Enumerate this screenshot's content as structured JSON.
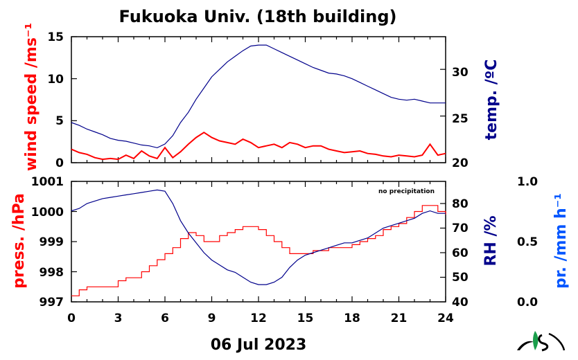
{
  "chart_data": [
    {
      "type": "line",
      "title": "Fukuoka Univ. (18th building)",
      "xlabel": "",
      "x_range": [
        0,
        24
      ],
      "x_ticks": [
        "0",
        "3",
        "6",
        "9",
        "12",
        "15",
        "18",
        "21",
        "24"
      ],
      "left_axis": {
        "label": "wind speed /ms⁻¹",
        "color": "#ff0000",
        "range": [
          0,
          15
        ],
        "ticks": [
          "0",
          "5",
          "10",
          "15"
        ]
      },
      "right_axis": {
        "label": "temp. /ºC",
        "color": "#00008b",
        "range": [
          20,
          33.5
        ],
        "ticks": [
          "20",
          "25",
          "30"
        ]
      },
      "series": [
        {
          "axis": "left",
          "color": "#ff0000",
          "x": [
            0,
            0.5,
            1,
            1.5,
            2,
            2.5,
            3,
            3.5,
            4,
            4.5,
            5,
            5.5,
            6,
            6.5,
            7,
            7.5,
            8,
            8.5,
            9,
            9.5,
            10,
            10.5,
            11,
            11.5,
            12,
            12.5,
            13,
            13.5,
            14,
            14.5,
            15,
            15.5,
            16,
            16.5,
            17,
            17.5,
            18,
            18.5,
            19,
            19.5,
            20,
            20.5,
            21,
            21.5,
            22,
            22.5,
            23,
            23.5,
            24
          ],
          "values": [
            1.6,
            1.2,
            1.0,
            0.6,
            0.4,
            0.5,
            0.4,
            0.9,
            0.5,
            1.4,
            0.8,
            0.5,
            1.8,
            0.6,
            1.3,
            2.2,
            3.0,
            3.6,
            3.0,
            2.6,
            2.4,
            2.2,
            2.8,
            2.4,
            1.8,
            2.0,
            2.2,
            1.8,
            2.4,
            2.2,
            1.8,
            2.0,
            2.0,
            1.6,
            1.4,
            1.2,
            1.3,
            1.4,
            1.1,
            1.0,
            0.8,
            0.7,
            0.9,
            0.8,
            0.7,
            0.9,
            2.2,
            0.9,
            1.1
          ]
        },
        {
          "axis": "right",
          "color": "#00008b",
          "x": [
            0,
            0.5,
            1,
            1.5,
            2,
            2.5,
            3,
            3.5,
            4,
            4.5,
            5,
            5.5,
            6,
            6.5,
            7,
            7.5,
            8,
            8.5,
            9,
            9.5,
            10,
            10.5,
            11,
            11.5,
            12,
            12.5,
            13,
            13.5,
            14,
            14.5,
            15,
            15.5,
            16,
            16.5,
            17,
            17.5,
            18,
            18.5,
            19,
            19.5,
            20,
            20.5,
            21,
            21.5,
            22,
            22.5,
            23,
            23.5,
            24
          ],
          "values": [
            24.3,
            24.0,
            23.6,
            23.3,
            23.0,
            22.6,
            22.4,
            22.3,
            22.1,
            21.9,
            21.8,
            21.6,
            22.0,
            22.9,
            24.3,
            25.4,
            26.8,
            28.0,
            29.2,
            30.0,
            30.8,
            31.4,
            32.0,
            32.5,
            32.6,
            32.6,
            32.2,
            31.8,
            31.4,
            31.0,
            30.6,
            30.2,
            29.9,
            29.6,
            29.5,
            29.3,
            29.0,
            28.6,
            28.2,
            27.8,
            27.4,
            27.0,
            26.8,
            26.7,
            26.8,
            26.6,
            26.4,
            26.4,
            26.4
          ]
        }
      ]
    },
    {
      "type": "line",
      "xlabel": "06 Jul 2023",
      "x_range": [
        0,
        24
      ],
      "x_ticks": [
        "0",
        "3",
        "6",
        "9",
        "12",
        "15",
        "18",
        "21",
        "24"
      ],
      "annotation": "no precipitation",
      "left_axis": {
        "label": "press. /hPa",
        "color": "#ff0000",
        "range": [
          997,
          1001
        ],
        "ticks": [
          "997",
          "998",
          "999",
          "1000",
          "1001"
        ]
      },
      "right_axis": {
        "label": "RH /%",
        "color": "#00008b",
        "range": [
          40,
          89
        ],
        "ticks": [
          "40",
          "50",
          "60",
          "70",
          "80"
        ]
      },
      "right_axis_2": {
        "label": "pr. /mm h⁻¹",
        "color": "#0055ff",
        "range": [
          0,
          1
        ],
        "ticks": [
          "0.0",
          "0.5",
          "1.0"
        ]
      },
      "series": [
        {
          "axis": "left",
          "color": "#ff0000",
          "x": [
            0,
            0.5,
            1,
            1.5,
            2,
            2.5,
            3,
            3.5,
            4,
            4.5,
            5,
            5.5,
            6,
            6.5,
            7,
            7.5,
            8,
            8.5,
            9,
            9.5,
            10,
            10.5,
            11,
            11.5,
            12,
            12.5,
            13,
            13.5,
            14,
            14.5,
            15,
            15.5,
            16,
            16.5,
            17,
            17.5,
            18,
            18.5,
            19,
            19.5,
            20,
            20.5,
            21,
            21.5,
            22,
            22.5,
            23,
            23.5,
            24
          ],
          "values": [
            997.2,
            997.4,
            997.5,
            997.5,
            997.5,
            997.5,
            997.7,
            997.8,
            997.8,
            998.0,
            998.2,
            998.4,
            998.6,
            998.8,
            999.1,
            999.3,
            999.2,
            999.0,
            999.0,
            999.2,
            999.3,
            999.4,
            999.5,
            999.5,
            999.4,
            999.2,
            999.0,
            998.8,
            998.6,
            998.6,
            998.6,
            998.7,
            998.7,
            998.8,
            998.8,
            998.8,
            998.9,
            999.0,
            999.1,
            999.2,
            999.4,
            999.5,
            999.6,
            999.8,
            1000.0,
            1000.2,
            1000.2,
            1000.0,
            999.9
          ]
        },
        {
          "axis": "right",
          "color": "#00008b",
          "x": [
            0,
            0.5,
            1,
            1.5,
            2,
            2.5,
            3,
            3.5,
            4,
            4.5,
            5,
            5.5,
            6,
            6.5,
            7,
            7.5,
            8,
            8.5,
            9,
            9.5,
            10,
            10.5,
            11,
            11.5,
            12,
            12.5,
            13,
            13.5,
            14,
            14.5,
            15,
            15.5,
            16,
            16.5,
            17,
            17.5,
            18,
            18.5,
            19,
            19.5,
            20,
            20.5,
            21,
            21.5,
            22,
            22.5,
            23,
            23.5,
            24
          ],
          "values": [
            77,
            78,
            80,
            81,
            82,
            82.5,
            83,
            83.5,
            84,
            84.5,
            85,
            85.5,
            85,
            80,
            73,
            68,
            64,
            60,
            57,
            55,
            53,
            52,
            50,
            48,
            47,
            47,
            48,
            50,
            54,
            57,
            59,
            60,
            61,
            62,
            63,
            64,
            64,
            65,
            66,
            68,
            70,
            71,
            72,
            73,
            74,
            76,
            77,
            76,
            76
          ]
        }
      ]
    }
  ]
}
